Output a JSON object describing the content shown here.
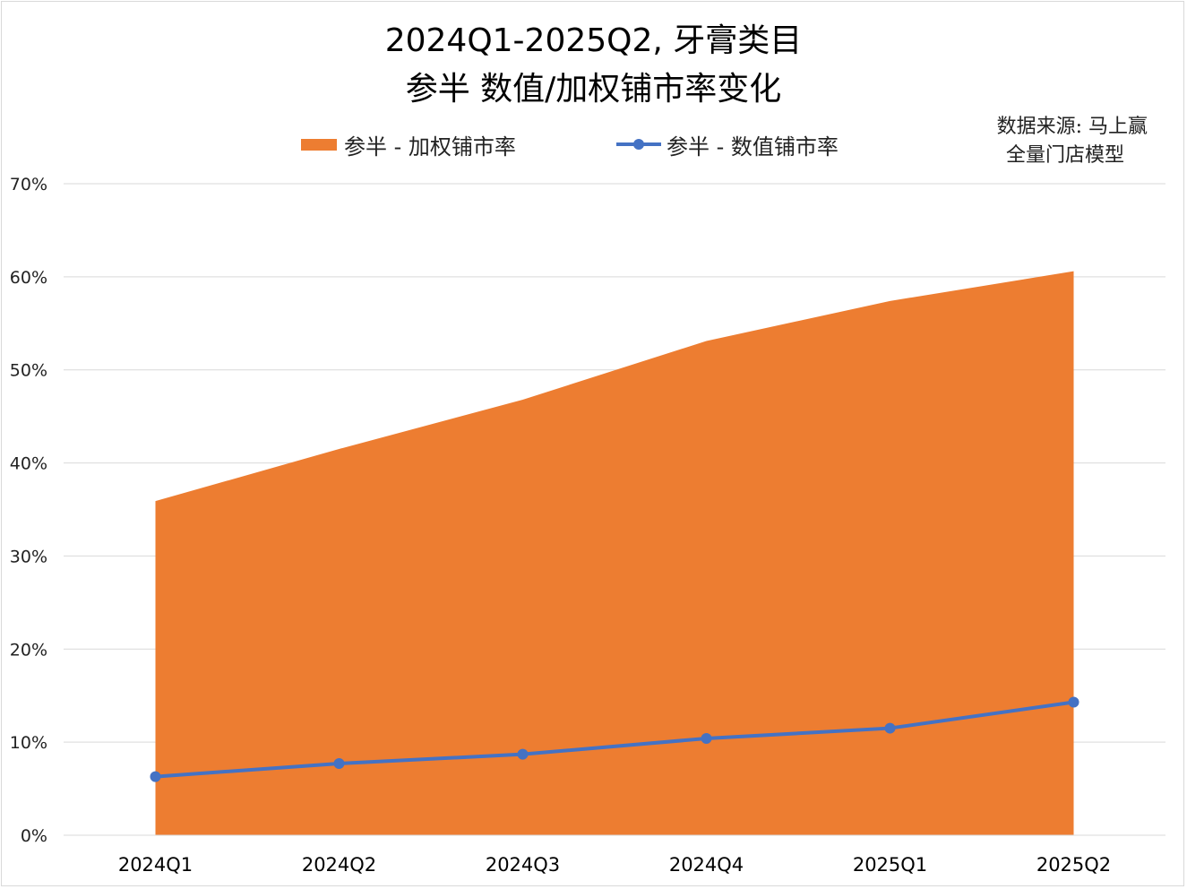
{
  "title_line1": "2024Q1-2025Q2, 牙膏类目",
  "title_line2": "参半 数值/加权铺市率变化",
  "source_line1": "数据来源: 马上赢",
  "source_line2": "全量门店模型",
  "colors": {
    "area": "#ed7d31",
    "line": "#4472c4",
    "grid": "#d9d9d9"
  },
  "chart_data": {
    "type": "area",
    "categories": [
      "2024Q1",
      "2024Q2",
      "2024Q3",
      "2024Q4",
      "2025Q1",
      "2025Q2"
    ],
    "series": [
      {
        "name": "参半 - 加权铺市率",
        "type": "area",
        "values": [
          35.9,
          41.5,
          46.8,
          53.1,
          57.4,
          60.6
        ]
      },
      {
        "name": "参半 - 数值铺市率",
        "type": "line",
        "values": [
          6.3,
          7.7,
          8.7,
          10.4,
          11.5,
          14.3
        ]
      }
    ],
    "ylim": [
      0,
      70
    ],
    "yticks": [
      "0%",
      "10%",
      "20%",
      "30%",
      "40%",
      "50%",
      "60%",
      "70%"
    ],
    "grid": true,
    "legend": "top"
  }
}
